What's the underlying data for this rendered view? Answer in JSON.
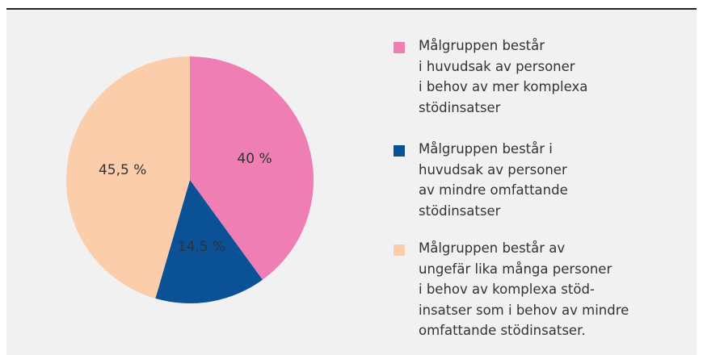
{
  "chart_data": {
    "type": "pie",
    "categories": [
      "Målgruppen består\ni huvudsak av personer\ni behov av mer komplexa\nstödinsatser",
      "Målgruppen består i\nhuvudsak av personer\nav mindre omfattande\nstödinsatser",
      "Målgruppen består av\nungefär lika många personer\ni behov av komplexa stöd-\ninsatser som i behov av mindre\nomfattande stödinsatser."
    ],
    "values": [
      40,
      14.5,
      45.5
    ],
    "value_labels": [
      "40 %",
      "14,5 %",
      "45,5 %"
    ],
    "colors": [
      "#ee7eb3",
      "#0a5196",
      "#fbcdaa"
    ],
    "legend": "right"
  }
}
